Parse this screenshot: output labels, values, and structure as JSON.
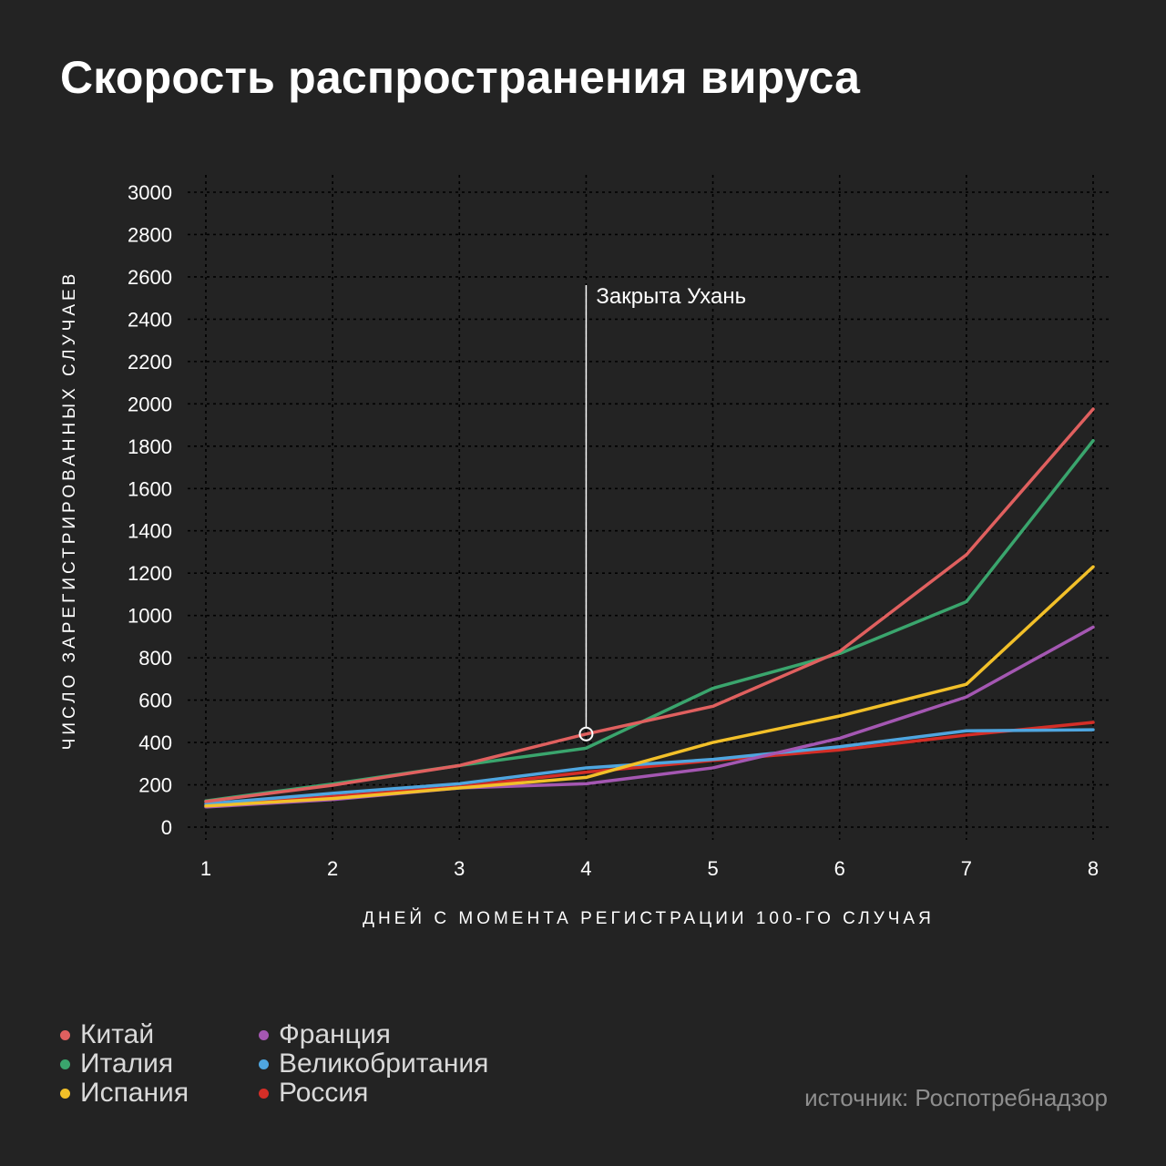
{
  "title": "Скорость распространения вируса",
  "source": "источник: Роспотребнадзор",
  "chart_data": {
    "type": "line",
    "title": "Скорость распространения вируса",
    "xlabel": "ДНЕЙ С МОМЕНТА РЕГИСТРАЦИИ 100-ГО СЛУЧАЯ",
    "ylabel": "ЧИСЛО ЗАРЕГИСТРИРОВАННЫХ СЛУЧАЕВ",
    "x": [
      1,
      2,
      3,
      4,
      5,
      6,
      7,
      8
    ],
    "xlim": [
      1,
      8
    ],
    "ylim": [
      0,
      3000
    ],
    "yticks": [
      0,
      200,
      400,
      600,
      800,
      1000,
      1200,
      1400,
      1600,
      1800,
      2000,
      2200,
      2400,
      2600,
      2800,
      3000
    ],
    "grid": true,
    "legend_position": "bottom-left",
    "series": [
      {
        "name": "Китай",
        "color": "#e0605f",
        "values": [
          121,
          198,
          291,
          440,
          571,
          830,
          1287,
          1975
        ]
      },
      {
        "name": "Италия",
        "color": "#3aa56d",
        "values": [
          124,
          204,
          291,
          373,
          656,
          820,
          1065,
          1826
        ]
      },
      {
        "name": "Испания",
        "color": "#f2c029",
        "values": [
          100,
          135,
          185,
          235,
          400,
          525,
          675,
          1230
        ]
      },
      {
        "name": "Франция",
        "color": "#a457b2",
        "values": [
          95,
          130,
          185,
          205,
          280,
          420,
          615,
          945
        ]
      },
      {
        "name": "Великобритания",
        "color": "#4fa6e0",
        "values": [
          110,
          160,
          205,
          280,
          320,
          380,
          455,
          460
        ]
      },
      {
        "name": "Россия",
        "color": "#d42e27",
        "values": [
          100,
          145,
          190,
          260,
          315,
          365,
          435,
          495
        ]
      }
    ],
    "annotation": {
      "x": 4,
      "y": 440,
      "label": "Закрыта Ухань"
    }
  }
}
